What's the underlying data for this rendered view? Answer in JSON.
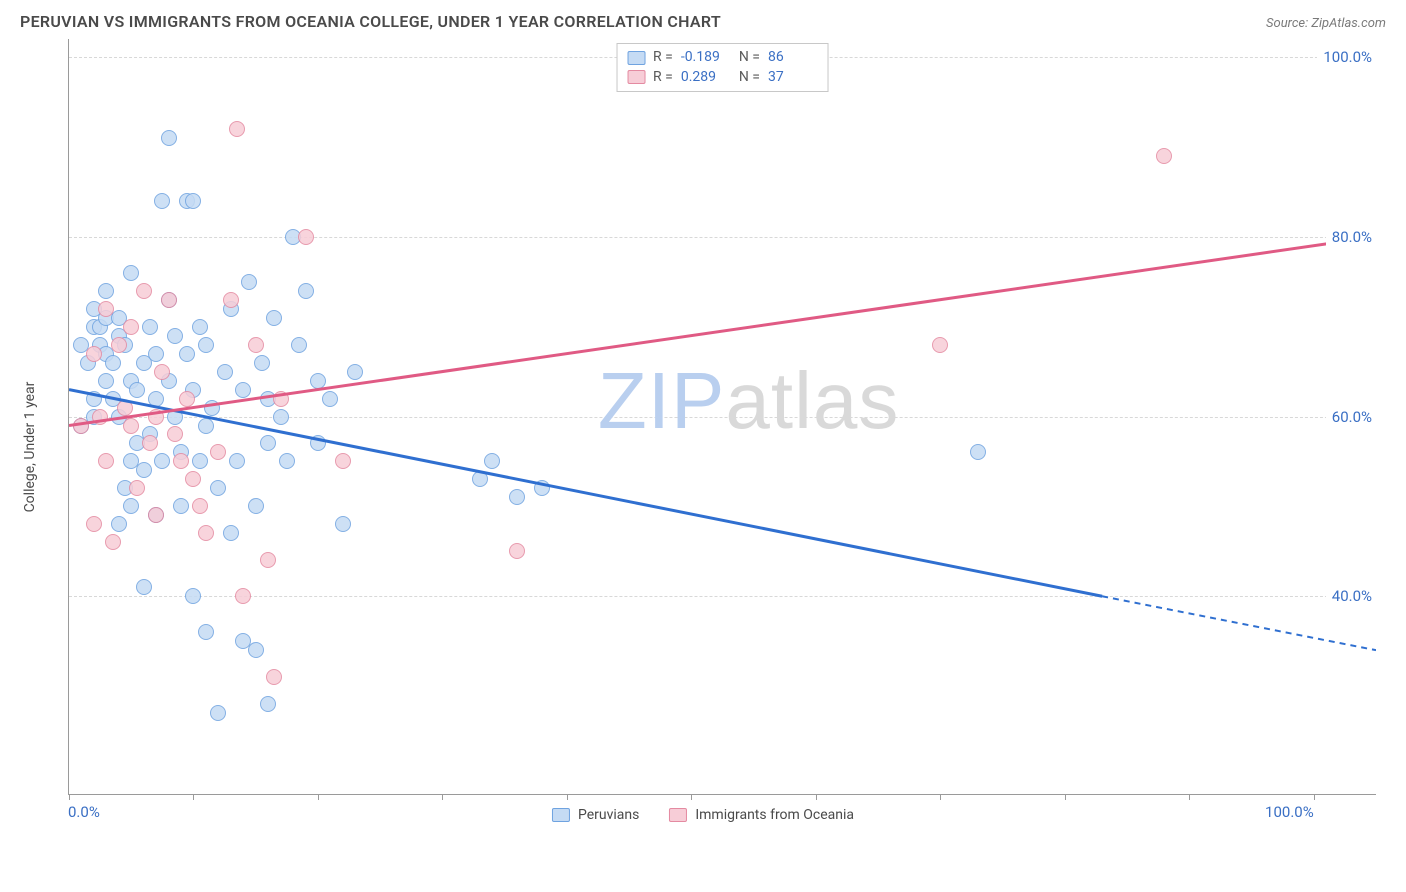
{
  "title": "PERUVIAN VS IMMIGRANTS FROM OCEANIA COLLEGE, UNDER 1 YEAR CORRELATION CHART",
  "source": "Source: ZipAtlas.com",
  "watermark": {
    "part1": "ZIP",
    "part2": "atlas",
    "color1": "#b9cfef",
    "color2": "#d9d9d9",
    "fontsize": 80
  },
  "chart": {
    "type": "scatter",
    "y_axis_title": "College, Under 1 year",
    "xlim": [
      0,
      105
    ],
    "ylim": [
      18,
      102
    ],
    "x_ticks": [
      0,
      10,
      20,
      30,
      40,
      50,
      60,
      70,
      80,
      90,
      100
    ],
    "x_tick_labels": {
      "0": "0.0%",
      "100": "100.0%"
    },
    "y_gridlines": [
      40,
      60,
      80,
      100
    ],
    "y_tick_labels": {
      "40": "40.0%",
      "60": "60.0%",
      "80": "80.0%",
      "100": "100.0%"
    },
    "background_color": "#ffffff",
    "grid_color": "#d8d8d8",
    "axis_color": "#9a9a9a",
    "tick_label_color": "#3a6fc4",
    "marker_radius": 8,
    "series": [
      {
        "name": "Peruvians",
        "fill": "#c5dbf4",
        "stroke": "#6fa3e0",
        "line_color": "#2f6fd0",
        "R": "-0.189",
        "N": "86",
        "trend": {
          "x1": 0,
          "y1": 63,
          "x2": 83,
          "y2": 40,
          "extrap_x2": 105,
          "extrap_y2": 34
        },
        "points": [
          [
            1,
            59
          ],
          [
            1,
            68
          ],
          [
            1.5,
            66
          ],
          [
            2,
            60
          ],
          [
            2,
            70
          ],
          [
            2,
            62
          ],
          [
            2,
            72
          ],
          [
            2.5,
            68
          ],
          [
            2.5,
            70
          ],
          [
            3,
            71
          ],
          [
            3,
            64
          ],
          [
            3,
            67
          ],
          [
            3,
            74
          ],
          [
            3.5,
            62
          ],
          [
            3.5,
            66
          ],
          [
            4,
            69
          ],
          [
            4,
            71
          ],
          [
            4,
            60
          ],
          [
            4,
            48
          ],
          [
            4.5,
            68
          ],
          [
            4.5,
            52
          ],
          [
            5,
            55
          ],
          [
            5,
            76
          ],
          [
            5,
            50
          ],
          [
            5,
            64
          ],
          [
            5.5,
            63
          ],
          [
            5.5,
            57
          ],
          [
            6,
            54
          ],
          [
            6,
            66
          ],
          [
            6,
            41
          ],
          [
            6.5,
            70
          ],
          [
            6.5,
            58
          ],
          [
            7,
            67
          ],
          [
            7,
            49
          ],
          [
            7,
            62
          ],
          [
            7.5,
            55
          ],
          [
            7.5,
            84
          ],
          [
            8,
            91
          ],
          [
            8,
            73
          ],
          [
            8,
            64
          ],
          [
            8.5,
            60
          ],
          [
            8.5,
            69
          ],
          [
            9,
            56
          ],
          [
            9,
            50
          ],
          [
            9.5,
            67
          ],
          [
            9.5,
            84
          ],
          [
            10,
            63
          ],
          [
            10,
            84
          ],
          [
            10,
            40
          ],
          [
            10.5,
            70
          ],
          [
            10.5,
            55
          ],
          [
            11,
            68
          ],
          [
            11,
            59
          ],
          [
            11,
            36
          ],
          [
            11.5,
            61
          ],
          [
            12,
            52
          ],
          [
            12,
            27
          ],
          [
            12.5,
            65
          ],
          [
            13,
            47
          ],
          [
            13,
            72
          ],
          [
            13.5,
            55
          ],
          [
            14,
            63
          ],
          [
            14,
            35
          ],
          [
            14.5,
            75
          ],
          [
            15,
            50
          ],
          [
            15,
            34
          ],
          [
            15.5,
            66
          ],
          [
            16,
            62
          ],
          [
            16,
            57
          ],
          [
            16.5,
            71
          ],
          [
            17,
            60
          ],
          [
            17.5,
            55
          ],
          [
            18,
            80
          ],
          [
            18.5,
            68
          ],
          [
            19,
            74
          ],
          [
            20,
            57
          ],
          [
            20,
            64
          ],
          [
            21,
            62
          ],
          [
            22,
            48
          ],
          [
            16,
            28
          ],
          [
            23,
            65
          ],
          [
            33,
            53
          ],
          [
            34,
            55
          ],
          [
            36,
            51
          ],
          [
            38,
            52
          ],
          [
            73,
            56
          ]
        ]
      },
      {
        "name": "Immigrants from Oceania",
        "fill": "#f7cdd7",
        "stroke": "#e48aa1",
        "line_color": "#e05a84",
        "R": "0.289",
        "N": "37",
        "trend": {
          "x1": 0,
          "y1": 59,
          "x2": 105,
          "y2": 80
        },
        "points": [
          [
            1,
            59
          ],
          [
            2,
            67
          ],
          [
            2,
            48
          ],
          [
            2.5,
            60
          ],
          [
            3,
            72
          ],
          [
            3,
            55
          ],
          [
            3.5,
            46
          ],
          [
            4,
            68
          ],
          [
            4.5,
            61
          ],
          [
            5,
            59
          ],
          [
            5,
            70
          ],
          [
            5.5,
            52
          ],
          [
            6,
            74
          ],
          [
            6.5,
            57
          ],
          [
            7,
            60
          ],
          [
            7,
            49
          ],
          [
            7.5,
            65
          ],
          [
            8,
            73
          ],
          [
            8.5,
            58
          ],
          [
            9,
            55
          ],
          [
            9.5,
            62
          ],
          [
            10,
            53
          ],
          [
            10.5,
            50
          ],
          [
            11,
            47
          ],
          [
            12,
            56
          ],
          [
            13,
            73
          ],
          [
            13.5,
            92
          ],
          [
            14,
            40
          ],
          [
            15,
            68
          ],
          [
            16,
            44
          ],
          [
            16.5,
            31
          ],
          [
            17,
            62
          ],
          [
            19,
            80
          ],
          [
            22,
            55
          ],
          [
            36,
            45
          ],
          [
            70,
            68
          ],
          [
            88,
            89
          ]
        ]
      }
    ],
    "legend_top": {
      "columns": [
        "swatch",
        "R",
        "N"
      ]
    },
    "legend_bottom": [
      "Peruvians",
      "Immigrants from Oceania"
    ]
  }
}
